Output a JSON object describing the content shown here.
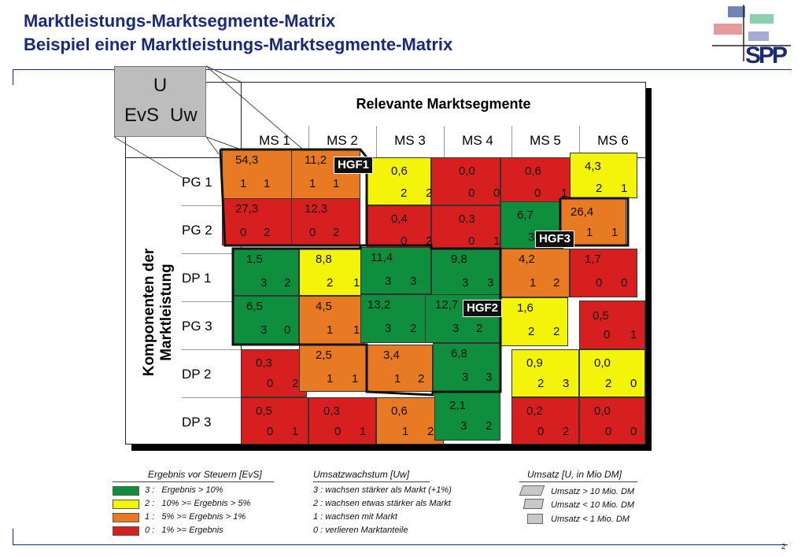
{
  "header": {
    "title": "Marktleistungs-Marktsegmente-Matrix",
    "subtitle": "Beispiel einer Marktleistungs-Marktsegmente-Matrix",
    "logo_text": "SPP",
    "page_number": "2"
  },
  "key": {
    "u": "U",
    "evs": "EvS",
    "uw": "Uw"
  },
  "matrix": {
    "column_group_title": "Relevante Marktsegmente",
    "row_group_title_line1": "Komponenten der",
    "row_group_title_line2": "Marktleistung",
    "columns": [
      "MS 1",
      "MS 2",
      "MS 3",
      "MS 4",
      "MS 5",
      "MS 6"
    ],
    "rows": [
      "PG 1",
      "PG 2",
      "DP 1",
      "PG 3",
      "DP 2",
      "DP 3"
    ],
    "cells": [
      [
        {
          "u": "54,3",
          "evs": "1",
          "uw": "1"
        },
        {
          "u": "11,2",
          "evs": "1",
          "uw": "1"
        },
        {
          "u": "0,6",
          "evs": "2",
          "uw": "2"
        },
        {
          "u": "0,0",
          "evs": "0",
          "uw": "0"
        },
        {
          "u": "0,6",
          "evs": "0",
          "uw": "1"
        },
        {
          "u": "4,3",
          "evs": "2",
          "uw": "1"
        }
      ],
      [
        {
          "u": "27,3",
          "evs": "0",
          "uw": "2"
        },
        {
          "u": "12,3",
          "evs": "0",
          "uw": "2"
        },
        {
          "u": "0,4",
          "evs": "0",
          "uw": "2"
        },
        {
          "u": "0,3",
          "evs": "0",
          "uw": "1"
        },
        {
          "u": "6,7",
          "evs": "3",
          "uw": ""
        },
        {
          "u": "26,4",
          "evs": "1",
          "uw": "1"
        }
      ],
      [
        {
          "u": "1,5",
          "evs": "3",
          "uw": "2"
        },
        {
          "u": "8,8",
          "evs": "2",
          "uw": "1"
        },
        {
          "u": "11,4",
          "evs": "3",
          "uw": "3"
        },
        {
          "u": "9,8",
          "evs": "3",
          "uw": "3"
        },
        {
          "u": "4,2",
          "evs": "1",
          "uw": "2"
        },
        {
          "u": "1,7",
          "evs": "0",
          "uw": "0"
        }
      ],
      [
        {
          "u": "6,5",
          "evs": "3",
          "uw": "0"
        },
        {
          "u": "4,5",
          "evs": "1",
          "uw": "1"
        },
        {
          "u": "13,2",
          "evs": "3",
          "uw": "2"
        },
        {
          "u": "12,7",
          "evs": "3",
          "uw": "2"
        },
        {
          "u": "1,6",
          "evs": "2",
          "uw": "2"
        },
        {
          "u": "0,5",
          "evs": "0",
          "uw": "1"
        }
      ],
      [
        {
          "u": "0,3",
          "evs": "0",
          "uw": "2"
        },
        {
          "u": "2,5",
          "evs": "1",
          "uw": "1"
        },
        {
          "u": "3,4",
          "evs": "1",
          "uw": "2"
        },
        {
          "u": "6,8",
          "evs": "3",
          "uw": "3"
        },
        {
          "u": "0,9",
          "evs": "2",
          "uw": "3"
        },
        {
          "u": "0,0",
          "evs": "2",
          "uw": "0"
        }
      ],
      [
        {
          "u": "0,5",
          "evs": "0",
          "uw": "1"
        },
        {
          "u": "0,3",
          "evs": "0",
          "uw": "1"
        },
        {
          "u": "0,6",
          "evs": "1",
          "uw": "2"
        },
        {
          "u": "2,1",
          "evs": "3",
          "uw": "2"
        },
        {
          "u": "0,2",
          "evs": "0",
          "uw": "2"
        },
        {
          "u": "0,0",
          "evs": "0",
          "uw": "0"
        }
      ]
    ],
    "groups": {
      "hgf1": "HGF1",
      "hgf2": "HGF2",
      "hgf3": "HGF3"
    }
  },
  "colors": {
    "evs3": "#0f8f3e",
    "evs2": "#f4f40a",
    "evs1": "#e77a22",
    "evs0": "#d81f1f"
  },
  "legend": {
    "evs_title": "Ergebnis vor Steuern [EvS]",
    "evs_items": [
      "3 :   Ergebnis > 10%",
      "2 :   10% >= Ergebnis > 5%",
      "1 :   5% >= Ergebnis > 1%",
      "0 :   1% >= Ergebnis"
    ],
    "uw_title": "Umsatzwachstum [Uw]",
    "uw_items": [
      "3 : wachsen stärker als Markt (+1%)",
      "2 : wachsen etwas stärker als Markt",
      "1 : wachsen mit Markt",
      "0 : verlieren Marktanteile"
    ],
    "u_title": "Umsatz [U, in Mio DM]",
    "u_items": [
      "Umsatz > 10 Mio. DM",
      "Umsatz < 10 Mio. DM",
      "Umsatz < 1 Mio. DM"
    ]
  }
}
